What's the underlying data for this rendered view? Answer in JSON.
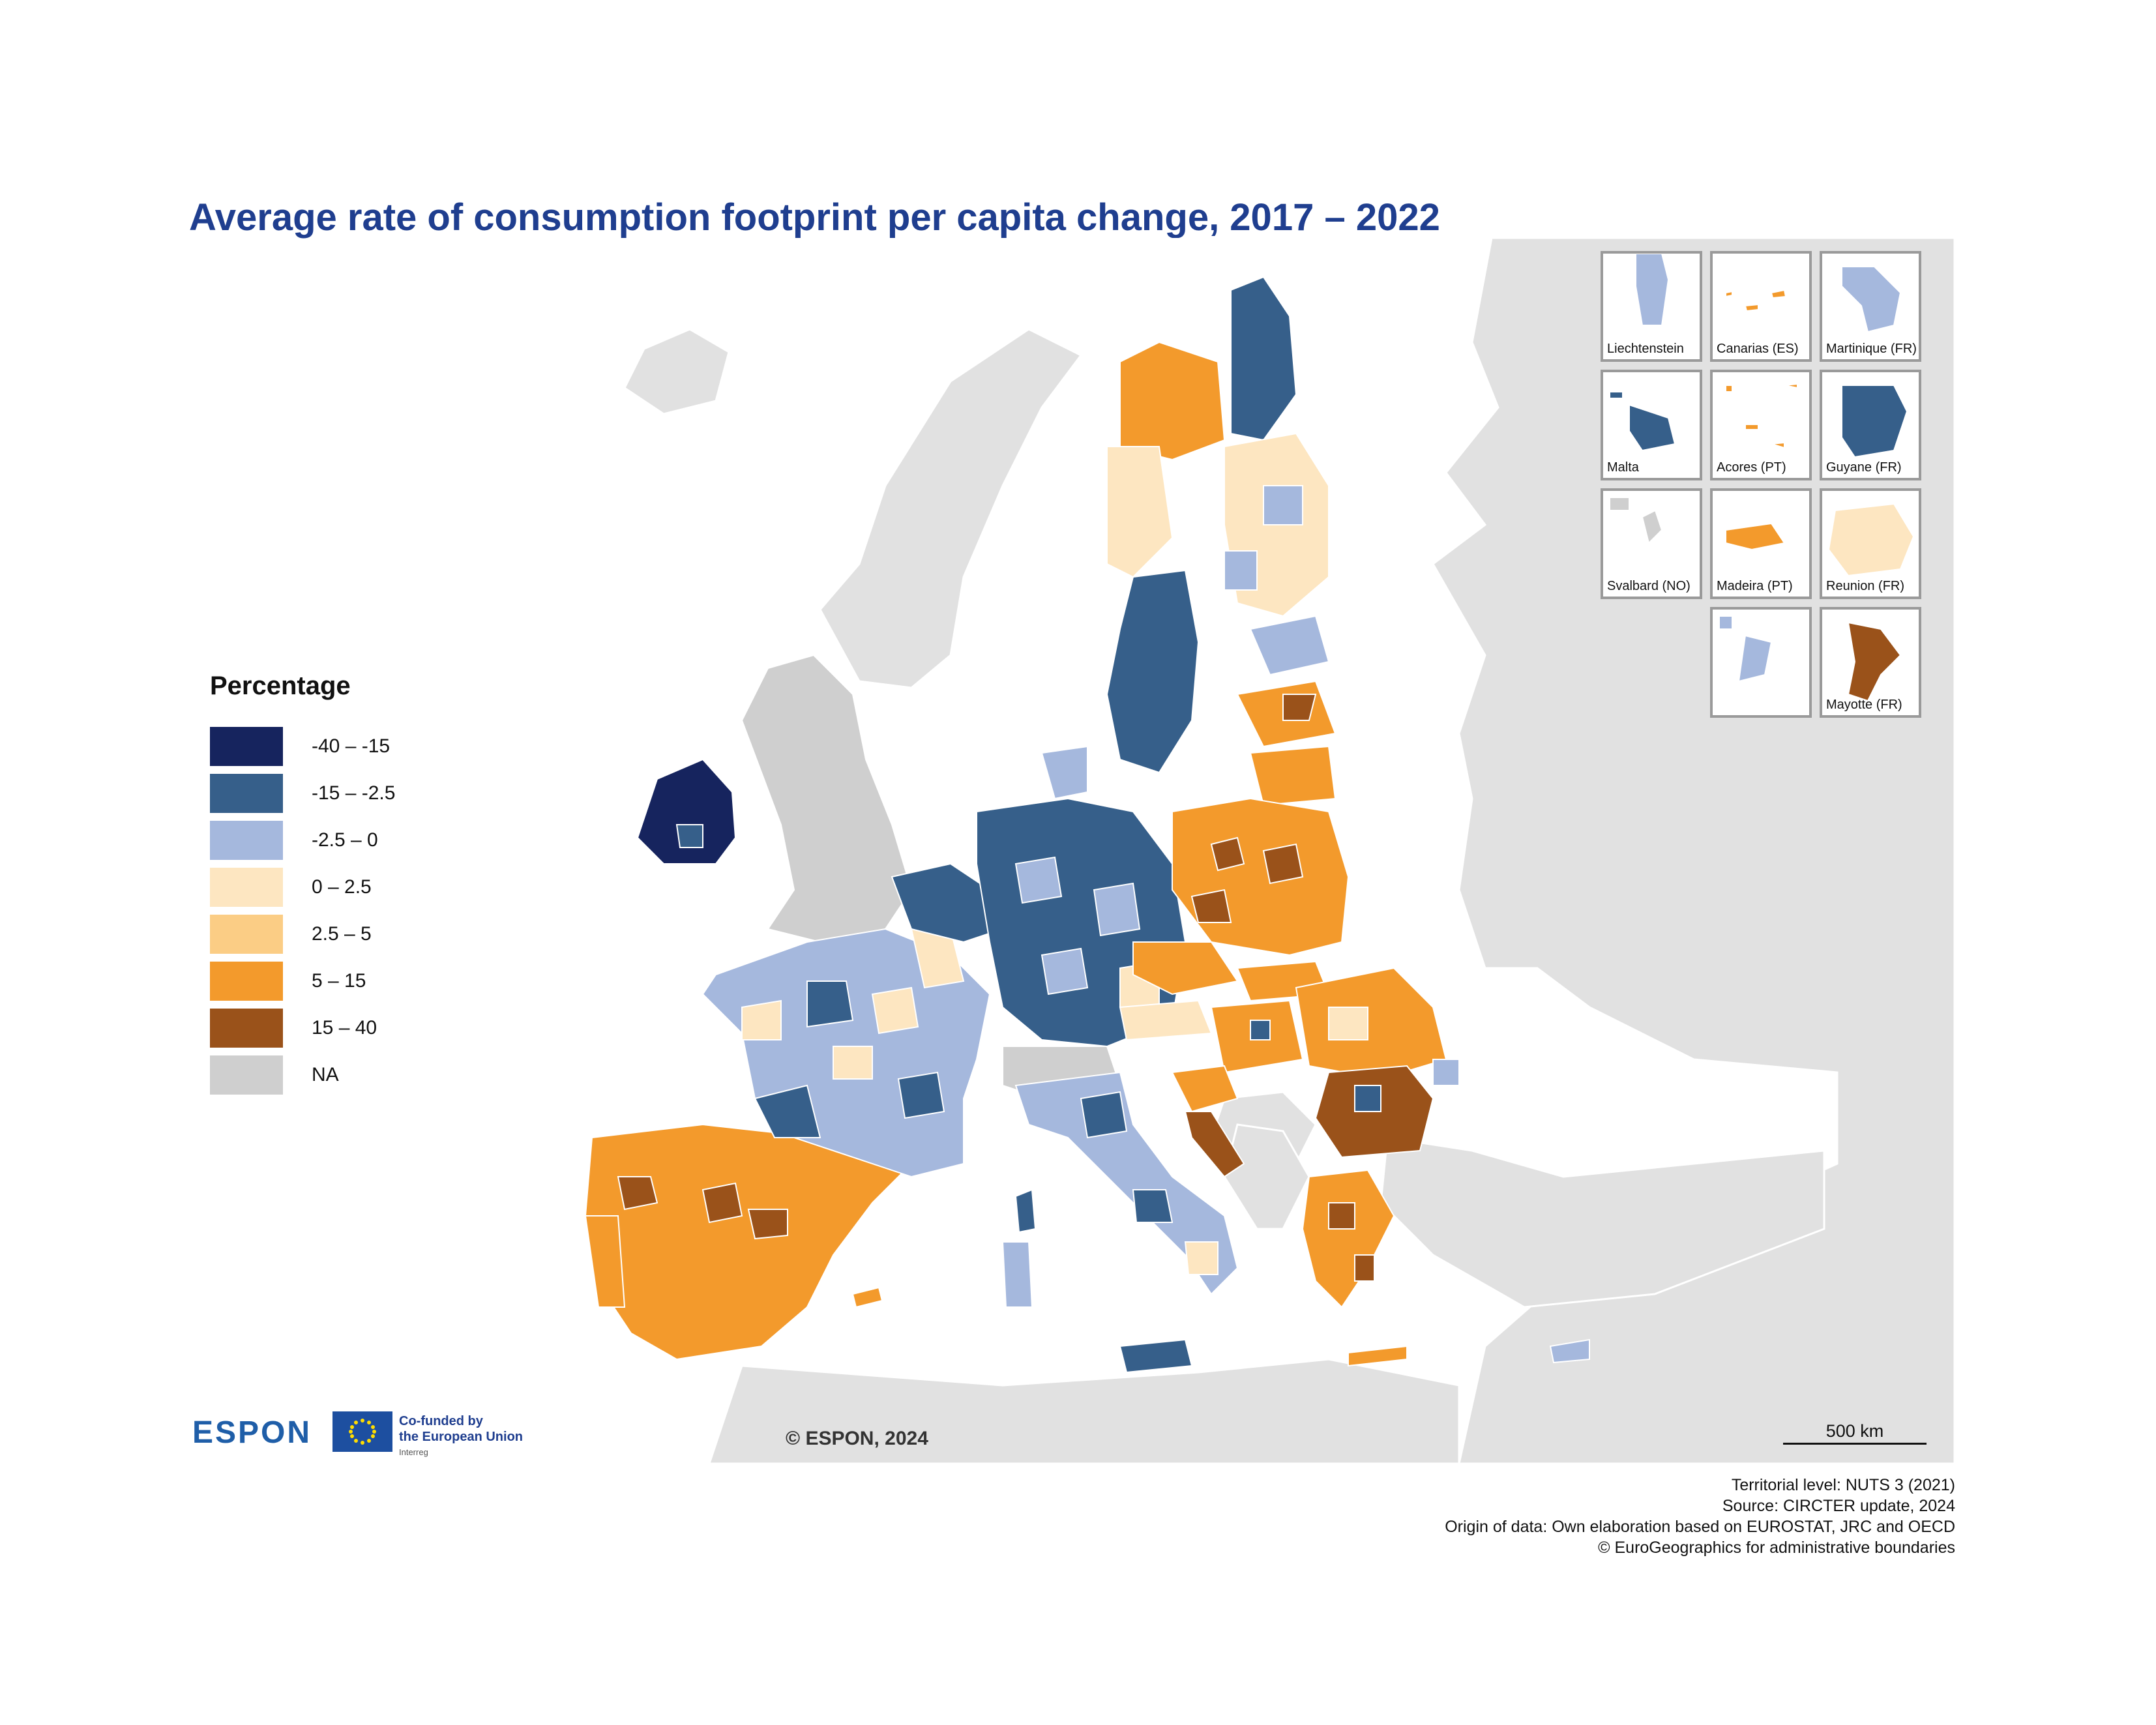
{
  "title": "Average rate of consumption footprint per capita change, 2017 – 2022",
  "legend": {
    "title": "Percentage",
    "classes": [
      {
        "label": "-40 – -15",
        "color": "#16245e"
      },
      {
        "label": "-15 – -2.5",
        "color": "#365f8a"
      },
      {
        "label": "-2.5 – 0",
        "color": "#a5b8dd"
      },
      {
        "label": "0 – 2.5",
        "color": "#fde6c1"
      },
      {
        "label": "2.5 – 5",
        "color": "#fbcd85"
      },
      {
        "label": "5 – 15",
        "color": "#f39a2c"
      },
      {
        "label": "15 – 40",
        "color": "#9a521a"
      },
      {
        "label": "NA",
        "color": "#cfcfcf"
      }
    ]
  },
  "insets": [
    {
      "label": "Liechtenstein",
      "color": "#a5b8dd"
    },
    {
      "label": "Canarias (ES)",
      "color": "#f39a2c"
    },
    {
      "label": "Martinique (FR)",
      "color": "#a5b8dd"
    },
    {
      "label": "Malta",
      "color": "#365f8a"
    },
    {
      "label": "Acores (PT)",
      "color": "#f39a2c"
    },
    {
      "label": "Guyane (FR)",
      "color": "#365f8a"
    },
    {
      "label": "Svalbard (NO)",
      "color": "#cfcfcf"
    },
    {
      "label": "Madeira (PT)",
      "color": "#f39a2c"
    },
    {
      "label": "Reunion (FR)",
      "color": "#fde6c1"
    },
    {
      "label": "",
      "color": "#a5b8dd"
    },
    {
      "label": "Mayotte (FR)",
      "color": "#9a521a"
    }
  ],
  "map": {
    "background_color": "#e1e1e1",
    "sea_color": "#ffffff",
    "copyright": "© ESPON, 2024",
    "scale_label": "500 km"
  },
  "logos": {
    "espon": "ESPON",
    "eu_line1": "Co-funded by",
    "eu_line2": "the European Union",
    "eu_line3": "Interreg"
  },
  "credits": {
    "line1": "Territorial level: NUTS 3 (2021)",
    "line2": "Source: CIRCTER update, 2024",
    "line3": "Origin of data: Own elaboration based on EUROSTAT, JRC and OECD",
    "line4": "© EuroGeographics for administrative boundaries"
  }
}
